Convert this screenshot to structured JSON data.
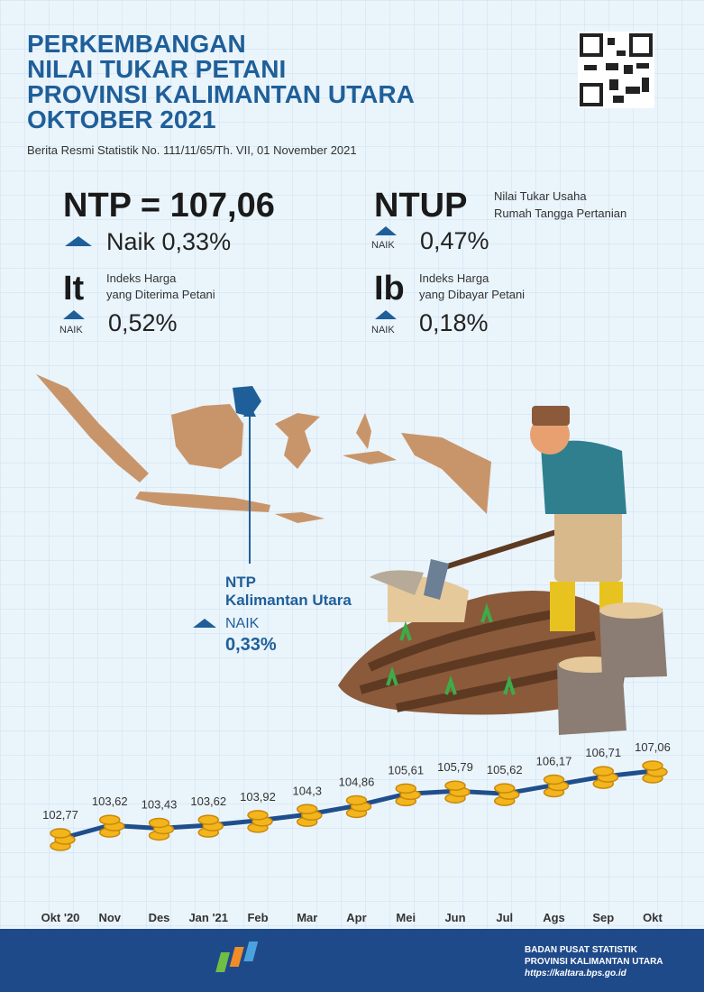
{
  "header": {
    "title": [
      "PERKEMBANGAN",
      "NILAI TUKAR PETANI",
      "PROVINSI KALIMANTAN UTARA",
      "OKTOBER 2021"
    ],
    "subtitle": "Berita Resmi Statistik No. 111/11/65/Th. VII, 01 November 2021"
  },
  "indicators": {
    "ntp": {
      "label": "NTP = 107,06",
      "change": "Naik 0,33%"
    },
    "ntup": {
      "label": "NTUP",
      "description": [
        "Nilai Tukar Usaha",
        "Rumah Tangga Pertanian"
      ],
      "status": "NAIK",
      "change": "0,47%"
    },
    "it": {
      "label": "It",
      "description": [
        "Indeks Harga",
        "yang Diterima Petani"
      ],
      "status": "NAIK",
      "change": "0,52%"
    },
    "ib": {
      "label": "Ib",
      "description": [
        "Indeks Harga",
        "yang Dibayar Petani"
      ],
      "status": "NAIK",
      "change": "0,18%"
    }
  },
  "map": {
    "label": [
      "NTP",
      "Kalimantan Utara"
    ],
    "status": "NAIK",
    "change": "0,33%"
  },
  "chart_data": {
    "type": "line",
    "categories": [
      "Okt '20",
      "Nov",
      "Des",
      "Jan '21",
      "Feb",
      "Mar",
      "Apr",
      "Mei",
      "Jun",
      "Jul",
      "Ags",
      "Sep",
      "Okt"
    ],
    "values": [
      102.77,
      103.62,
      103.43,
      103.62,
      103.92,
      104.3,
      104.86,
      105.61,
      105.79,
      105.62,
      106.17,
      106.71,
      107.06
    ],
    "value_labels": [
      "102,77",
      "103,62",
      "103,43",
      "103,62",
      "103,92",
      "104,3",
      "104,86",
      "105,61",
      "105,79",
      "105,62",
      "106,17",
      "106,71",
      "107,06"
    ],
    "color": "#1f4e8c"
  },
  "footer": {
    "lines": [
      "BADAN PUSAT STATISTIK",
      "PROVINSI KALIMANTAN UTARA",
      "https://kaltara.bps.go.id"
    ]
  }
}
